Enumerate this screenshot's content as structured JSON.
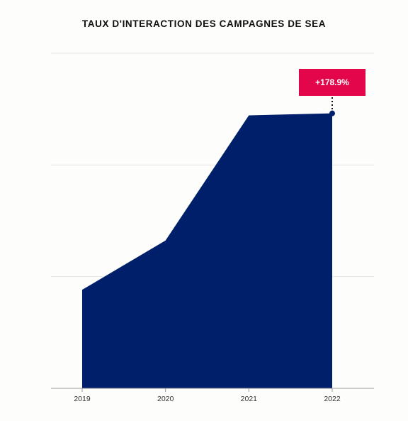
{
  "chart_data": {
    "type": "area",
    "title": "TAUX D'INTERACTION DES CAMPAGNES DE SEA",
    "categories": [
      "2019",
      "2020",
      "2021",
      "2022"
    ],
    "values": [
      1.0,
      1.5,
      2.77,
      2.79
    ],
    "ylim": [
      0,
      3.4
    ],
    "y_ticks_shown": false,
    "grid": true,
    "annotation": {
      "label": "+178.9%",
      "category": "2022"
    },
    "colors": {
      "area": "#001f6b",
      "badge": "#e4064b",
      "grid": "#e6e6e6",
      "axis": "#999999"
    }
  }
}
